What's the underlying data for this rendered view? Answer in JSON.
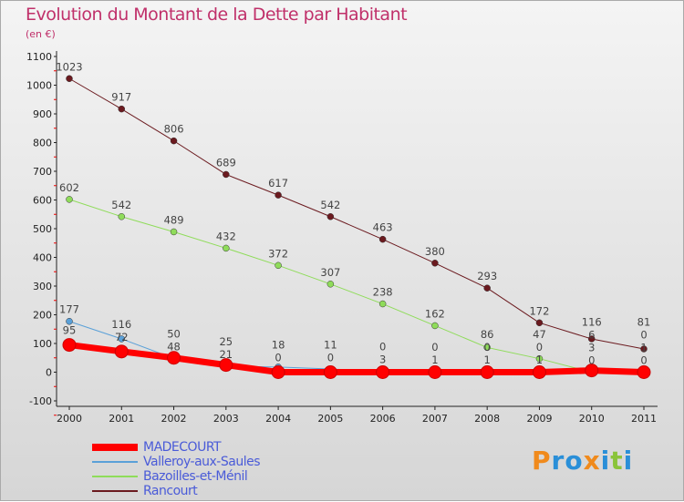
{
  "logo": "Proxiti",
  "chart_data": {
    "type": "line",
    "title": "Evolution du Montant de la Dette par Habitant",
    "subtitle": "(en €)",
    "xlabel": "",
    "ylabel": "",
    "x": [
      "2000",
      "2001",
      "2002",
      "2003",
      "2004",
      "2005",
      "2006",
      "2007",
      "2008",
      "2009",
      "2010",
      "2011"
    ],
    "ylim": [
      -100,
      1100
    ],
    "yticks": [
      -100,
      0,
      100,
      200,
      300,
      400,
      500,
      600,
      700,
      800,
      900,
      1000,
      1100
    ],
    "grid": false,
    "legend_position": "bottom",
    "series": [
      {
        "name": "Rancourt",
        "color": "#6b1a1f",
        "width": 1,
        "values": [
          1023,
          917,
          806,
          689,
          617,
          542,
          463,
          380,
          293,
          172,
          116,
          81
        ]
      },
      {
        "name": "Bazoilles-et-Ménil",
        "color": "#8fdc5a",
        "width": 1,
        "values": [
          602,
          542,
          489,
          432,
          372,
          307,
          238,
          162,
          86,
          47,
          0,
          0
        ]
      },
      {
        "name": "Valleroy-aux-Saules",
        "color": "#5aa0d8",
        "width": 1,
        "values": [
          177,
          116,
          48,
          21,
          18,
          11,
          3,
          1,
          1,
          1,
          3,
          1
        ]
      },
      {
        "name": "MADECOURT",
        "color": "#ff0000",
        "width": 7,
        "values": [
          95,
          72,
          50,
          25,
          0,
          0,
          0,
          0,
          0,
          0,
          6,
          0
        ]
      }
    ]
  }
}
